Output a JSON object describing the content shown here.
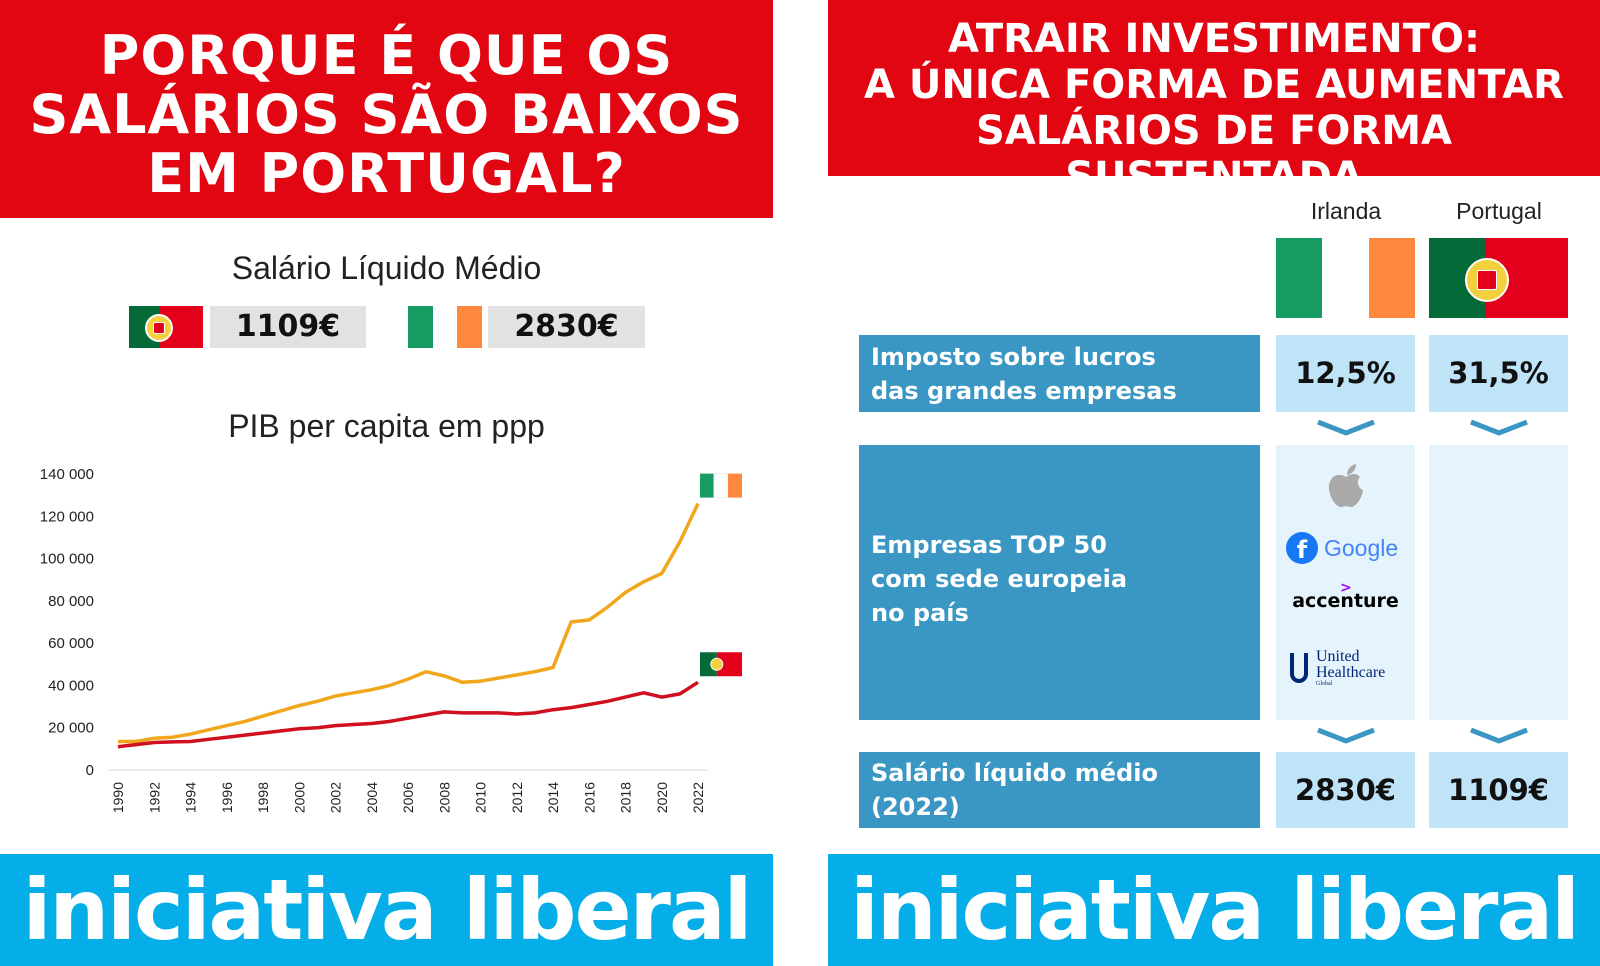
{
  "left": {
    "title_lines": [
      "PORQUE É QUE OS",
      "SALÁRIOS SÃO BAIXOS",
      "EM PORTUGAL?"
    ],
    "salary_title": "Salário Líquido Médio",
    "salary_pt": "1109€",
    "salary_ie": "2830€",
    "pib_title": "PIB per capita em ppp",
    "footer_logo": "iniciativa liberal"
  },
  "right": {
    "title_lines": [
      "ATRAIR INVESTIMENTO:",
      "A ÚNICA FORMA DE AUMENTAR",
      "SALÁRIOS DE FORMA SUSTENTADA"
    ],
    "country_ie": "Irlanda",
    "country_pt": "Portugal",
    "row1_label": [
      "Imposto sobre lucros",
      "das grandes empresas"
    ],
    "row1_ie": "12,5%",
    "row1_pt": "31,5%",
    "row2_label_prefix": "Empresas ",
    "row2_label_bold": "TOP 50",
    "row2_label_lines": [
      "com sede europeia",
      "no país"
    ],
    "logos": {
      "google": "Google",
      "accenture": "accenture",
      "uhc_line1": "United",
      "uhc_line2": "Healthcare",
      "uhc_line3": "Global"
    },
    "row3_label": [
      "Salário líquido médio",
      "(2022)"
    ],
    "row3_ie": "2830€",
    "row3_pt": "1109€",
    "footer_logo": "iniciativa liberal"
  },
  "colors": {
    "red": "#e20613",
    "blue": "#05aee8",
    "table_label": "#3a96c2",
    "table_value": "#bfe3f7",
    "ireland_line": "#f0a71c",
    "portugal_line": "#d0101e"
  },
  "chart_data": {
    "type": "line",
    "title": "PIB per capita em ppp",
    "x": [
      1990,
      1991,
      1992,
      1993,
      1994,
      1995,
      1996,
      1997,
      1998,
      1999,
      2000,
      2001,
      2002,
      2003,
      2004,
      2005,
      2006,
      2007,
      2008,
      2009,
      2010,
      2011,
      2012,
      2013,
      2014,
      2015,
      2016,
      2017,
      2018,
      2019,
      2020,
      2021,
      2022
    ],
    "x_ticks": [
      "1990",
      "1992",
      "1994",
      "1996",
      "1998",
      "2000",
      "2002",
      "2004",
      "2006",
      "2008",
      "2010",
      "2012",
      "2014",
      "2016",
      "2018",
      "2020",
      "2022"
    ],
    "y_ticks": [
      "0",
      "20 000",
      "40 000",
      "60 000",
      "80 000",
      "100 000",
      "120 000",
      "140 000"
    ],
    "ylim": [
      0,
      140000
    ],
    "series": [
      {
        "name": "Irlanda",
        "color": "#f0a71c",
        "values": [
          13500,
          13500,
          15000,
          15500,
          17000,
          19000,
          21000,
          23000,
          25500,
          28000,
          30500,
          32500,
          35000,
          36500,
          38000,
          40000,
          43000,
          46500,
          44500,
          41500,
          42000,
          43500,
          45000,
          46500,
          48500,
          70000,
          71000,
          77000,
          84000,
          89000,
          93000,
          108000,
          126000
        ]
      },
      {
        "name": "Portugal",
        "color": "#d0101e",
        "values": [
          11000,
          12000,
          13000,
          13300,
          13500,
          14500,
          15500,
          16500,
          17500,
          18500,
          19500,
          20000,
          21000,
          21500,
          22000,
          23000,
          24500,
          26000,
          27500,
          27000,
          27000,
          27000,
          26500,
          27000,
          28500,
          29500,
          31000,
          32500,
          34500,
          36500,
          34500,
          36000,
          41500
        ]
      }
    ]
  }
}
